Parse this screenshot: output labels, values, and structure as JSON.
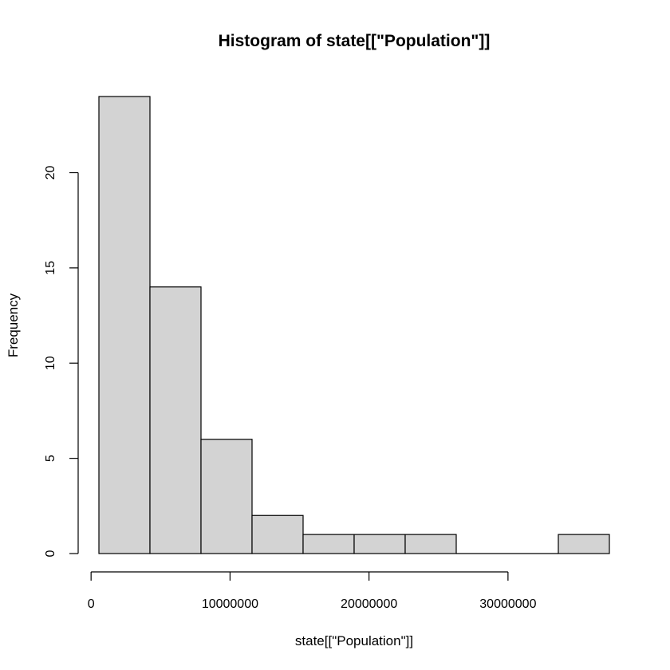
{
  "chart_data": {
    "type": "histogram",
    "title": "Histogram of state[[\"Population\"]]",
    "xlabel": "state[[\"Population\"]]",
    "ylabel": "Frequency",
    "bins": [
      {
        "start": 563626,
        "end": 4236854,
        "count": 24
      },
      {
        "start": 4236854,
        "end": 7910082,
        "count": 14
      },
      {
        "start": 7910082,
        "end": 11583310,
        "count": 6
      },
      {
        "start": 11583310,
        "end": 15256538,
        "count": 2
      },
      {
        "start": 15256538,
        "end": 18929766,
        "count": 1
      },
      {
        "start": 18929766,
        "end": 22602994,
        "count": 1
      },
      {
        "start": 22602994,
        "end": 26276222,
        "count": 1
      },
      {
        "start": 26276222,
        "end": 29949450,
        "count": 0
      },
      {
        "start": 29949450,
        "end": 33622678,
        "count": 0
      },
      {
        "start": 33622678,
        "end": 37295906,
        "count": 1
      }
    ],
    "x_ticks": [
      0,
      10000000,
      20000000,
      30000000
    ],
    "x_tick_labels": [
      "0",
      "10000000",
      "20000000",
      "30000000"
    ],
    "y_ticks": [
      0,
      5,
      10,
      15,
      20
    ],
    "y_tick_labels": [
      "0",
      "5",
      "10",
      "15",
      "20"
    ],
    "xlim": [
      563626,
      37295906
    ],
    "ylim": [
      0,
      24
    ],
    "bar_fill": "#d3d3d3",
    "bar_stroke": "#000000",
    "grid": false
  }
}
